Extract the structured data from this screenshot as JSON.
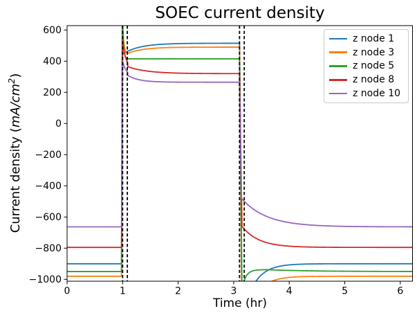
{
  "chart_data": {
    "type": "line",
    "title": "SOEC current density",
    "xlabel": "Time (hr)",
    "ylabel": "Current density (mA/cm^2)",
    "ylabel_parts": {
      "prefix": "Current density (",
      "math_italic": "mA/cm",
      "superscript": "2",
      "suffix": ")"
    },
    "xlim": [
      0,
      6.22
    ],
    "ylim": [
      -1012,
      628
    ],
    "xticks": [
      0,
      1,
      2,
      3,
      4,
      5,
      6
    ],
    "yticks": [
      600,
      400,
      200,
      0,
      -200,
      -400,
      -600,
      -800,
      -1000
    ],
    "grid": false,
    "legend_position": "upper right",
    "vlines": {
      "color": "#000000",
      "style": "dashed",
      "x": [
        1.0,
        1.085,
        3.105,
        3.19
      ]
    },
    "series": [
      {
        "name": "z node 1",
        "color": "#1f77b4",
        "steady_state_phase1": -900,
        "plateau_phase2": 515,
        "steady_state_phase3": -900,
        "segments": [
          {
            "type": "flat",
            "t0": 0,
            "t1": 0.98,
            "v": -900
          },
          {
            "type": "line",
            "t0": 0.98,
            "t1": 1.0,
            "v0": -900,
            "v1": 445
          },
          {
            "type": "exp",
            "t0": 1.0,
            "t1": 3.105,
            "v0": 445,
            "v1": 515,
            "tau": 0.3
          },
          {
            "type": "line",
            "t0": 3.105,
            "t1": 3.15,
            "v0": 515,
            "v1": -1250
          },
          {
            "type": "exp",
            "t0": 3.15,
            "t1": 6.22,
            "v0": -1250,
            "v1": -900,
            "tau": 0.22
          }
        ]
      },
      {
        "name": "z node 3",
        "color": "#ff7f0e",
        "steady_state_phase1": -980,
        "plateau_phase2": 490,
        "steady_state_phase3": -980,
        "segments": [
          {
            "type": "flat",
            "t0": 0,
            "t1": 0.98,
            "v": -980
          },
          {
            "type": "line",
            "t0": 0.98,
            "t1": 0.995,
            "v0": -980,
            "v1": 700
          },
          {
            "type": "exp",
            "t0": 0.995,
            "t1": 1.08,
            "v0": 700,
            "v1": 448,
            "tau": 0.022
          },
          {
            "type": "exp",
            "t0": 1.08,
            "t1": 3.105,
            "v0": 448,
            "v1": 490,
            "tau": 0.28
          },
          {
            "type": "line",
            "t0": 3.105,
            "t1": 3.15,
            "v0": 490,
            "v1": -1350
          },
          {
            "type": "exp",
            "t0": 3.15,
            "t1": 6.22,
            "v0": -1350,
            "v1": -980,
            "tau": 0.22
          }
        ]
      },
      {
        "name": "z node 5",
        "color": "#2ca02c",
        "steady_state_phase1": -950,
        "plateau_phase2": 415,
        "steady_state_phase3": -950,
        "segments": [
          {
            "type": "flat",
            "t0": 0,
            "t1": 0.98,
            "v": -950
          },
          {
            "type": "line",
            "t0": 0.98,
            "t1": 0.995,
            "v0": -950,
            "v1": 720
          },
          {
            "type": "exp",
            "t0": 0.995,
            "t1": 1.07,
            "v0": 720,
            "v1": 415,
            "tau": 0.018
          },
          {
            "type": "flat",
            "t0": 1.07,
            "t1": 3.105,
            "v": 415
          },
          {
            "type": "line",
            "t0": 3.105,
            "t1": 3.15,
            "v0": 415,
            "v1": -1060
          },
          {
            "type": "exp",
            "t0": 3.15,
            "t1": 3.6,
            "v0": -1060,
            "v1": -938,
            "tau": 0.07
          },
          {
            "type": "exp",
            "t0": 3.6,
            "t1": 6.22,
            "v0": -938,
            "v1": -950,
            "tau": 0.8
          }
        ]
      },
      {
        "name": "z node 8",
        "color": "#d62728",
        "steady_state_phase1": -795,
        "plateau_phase2": 320,
        "steady_state_phase3": -795,
        "segments": [
          {
            "type": "flat",
            "t0": 0,
            "t1": 0.98,
            "v": -795
          },
          {
            "type": "line",
            "t0": 0.98,
            "t1": 1.0,
            "v0": -795,
            "v1": 535
          },
          {
            "type": "exp",
            "t0": 1.0,
            "t1": 1.09,
            "v0": 535,
            "v1": 365,
            "tau": 0.05
          },
          {
            "type": "exp",
            "t0": 1.09,
            "t1": 3.105,
            "v0": 365,
            "v1": 320,
            "tau": 0.35
          },
          {
            "type": "line",
            "t0": 3.105,
            "t1": 3.15,
            "v0": 320,
            "v1": -660
          },
          {
            "type": "exp",
            "t0": 3.15,
            "t1": 6.22,
            "v0": -660,
            "v1": -795,
            "tau": 0.3
          }
        ]
      },
      {
        "name": "z node 10",
        "color": "#9467bd",
        "steady_state_phase1": -663,
        "plateau_phase2": 265,
        "steady_state_phase3": -663,
        "segments": [
          {
            "type": "flat",
            "t0": 0,
            "t1": 0.98,
            "v": -663
          },
          {
            "type": "line",
            "t0": 0.98,
            "t1": 1.0,
            "v0": -663,
            "v1": 400
          },
          {
            "type": "exp",
            "t0": 1.0,
            "t1": 1.09,
            "v0": 400,
            "v1": 310,
            "tau": 0.06
          },
          {
            "type": "exp",
            "t0": 1.09,
            "t1": 3.105,
            "v0": 310,
            "v1": 265,
            "tau": 0.2
          },
          {
            "type": "line",
            "t0": 3.105,
            "t1": 3.14,
            "v0": 265,
            "v1": -480
          },
          {
            "type": "exp",
            "t0": 3.14,
            "t1": 6.22,
            "v0": -480,
            "v1": -663,
            "tau": 0.45
          }
        ]
      }
    ]
  }
}
